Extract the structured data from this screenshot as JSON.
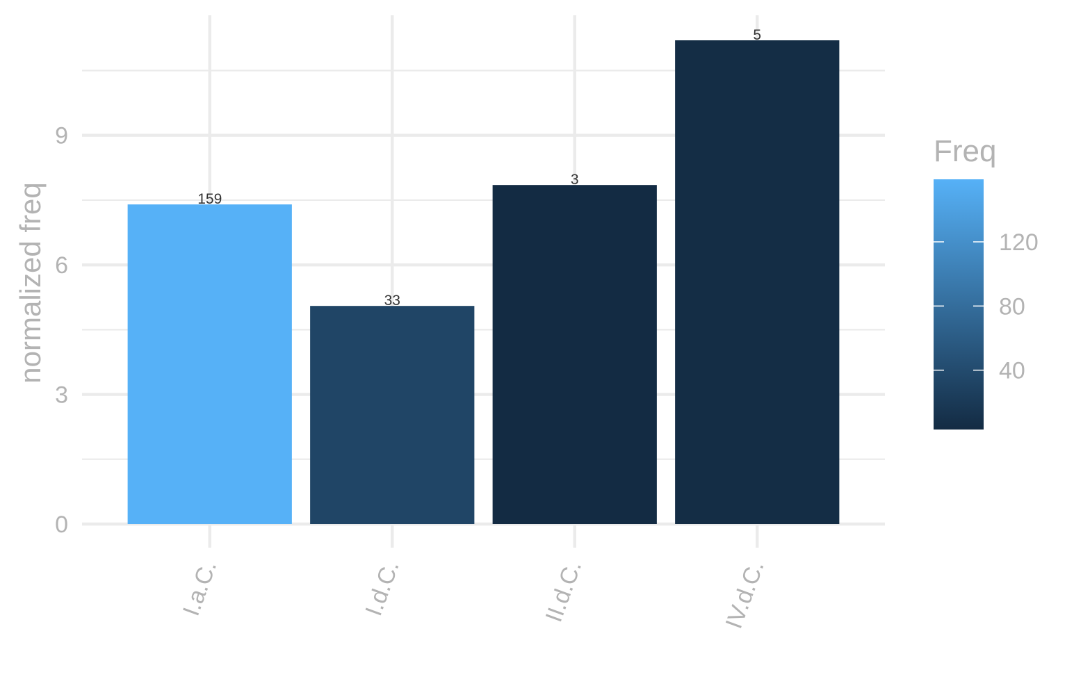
{
  "chart_data": {
    "type": "bar",
    "categories": [
      "I.a.C.",
      "I.d.C.",
      "II.d.C.",
      "IV.d.C."
    ],
    "values": [
      7.4,
      5.05,
      7.85,
      11.2
    ],
    "freq": [
      159,
      33,
      3,
      5
    ],
    "data_labels": [
      "159",
      "33",
      "3",
      "5"
    ],
    "xlabel": "",
    "ylabel": "normalized freq",
    "ylim": [
      0,
      11.2
    ],
    "yticks": [
      0,
      3,
      6,
      9
    ],
    "ytick_labels": [
      "0",
      "3",
      "6",
      "9"
    ],
    "grid": true,
    "legend": {
      "title": "Freq",
      "position": "right",
      "type": "colorbar",
      "range": [
        3,
        159
      ],
      "ticks": [
        40,
        80,
        120
      ],
      "tick_labels": [
        "40",
        "80",
        "120"
      ],
      "low_color": "#132B43",
      "high_color": "#56B1F7"
    }
  }
}
